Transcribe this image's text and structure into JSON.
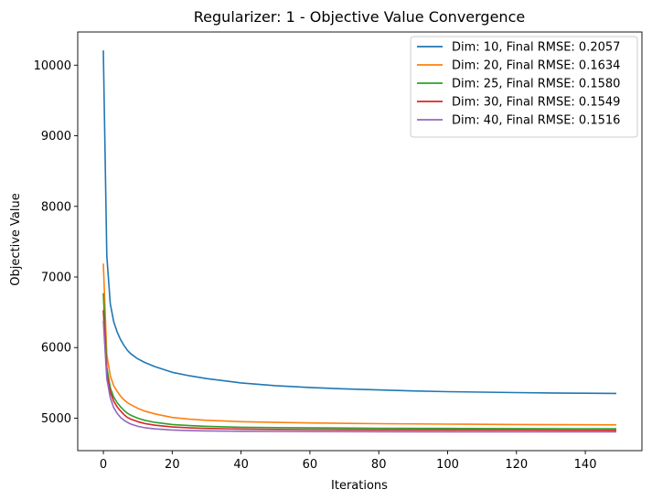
{
  "chart_data": {
    "type": "line",
    "title": "Regularizer: 1 - Objective Value Convergence",
    "xlabel": "Iterations",
    "ylabel": "Objective Value",
    "xlim": [
      -7.45,
      156.45
    ],
    "ylim": [
      4540,
      10470
    ],
    "xticks": [
      0,
      20,
      40,
      60,
      80,
      100,
      120,
      140
    ],
    "yticks": [
      5000,
      6000,
      7000,
      8000,
      9000,
      10000
    ],
    "grid": false,
    "legend_position": "upper right",
    "series": [
      {
        "name": "Dim: 10, Final RMSE: 0.2057",
        "color": "#1f77b4",
        "points": [
          [
            0,
            10210
          ],
          [
            1,
            7300
          ],
          [
            2,
            6620
          ],
          [
            3,
            6370
          ],
          [
            4,
            6220
          ],
          [
            5,
            6110
          ],
          [
            6,
            6030
          ],
          [
            7,
            5960
          ],
          [
            8,
            5910
          ],
          [
            10,
            5840
          ],
          [
            12,
            5790
          ],
          [
            15,
            5730
          ],
          [
            20,
            5650
          ],
          [
            25,
            5600
          ],
          [
            30,
            5560
          ],
          [
            40,
            5500
          ],
          [
            50,
            5460
          ],
          [
            60,
            5435
          ],
          [
            70,
            5415
          ],
          [
            80,
            5400
          ],
          [
            90,
            5385
          ],
          [
            100,
            5375
          ],
          [
            110,
            5368
          ],
          [
            120,
            5362
          ],
          [
            130,
            5357
          ],
          [
            140,
            5353
          ],
          [
            149,
            5350
          ]
        ]
      },
      {
        "name": "Dim: 20, Final RMSE: 0.1634",
        "color": "#ff7f0e",
        "points": [
          [
            0,
            7190
          ],
          [
            1,
            5900
          ],
          [
            2,
            5600
          ],
          [
            3,
            5460
          ],
          [
            4,
            5380
          ],
          [
            5,
            5310
          ],
          [
            6,
            5260
          ],
          [
            7,
            5220
          ],
          [
            8,
            5190
          ],
          [
            10,
            5140
          ],
          [
            12,
            5100
          ],
          [
            15,
            5060
          ],
          [
            20,
            5010
          ],
          [
            25,
            4985
          ],
          [
            30,
            4970
          ],
          [
            40,
            4950
          ],
          [
            50,
            4940
          ],
          [
            60,
            4932
          ],
          [
            80,
            4922
          ],
          [
            100,
            4915
          ],
          [
            120,
            4910
          ],
          [
            140,
            4906
          ],
          [
            149,
            4905
          ]
        ]
      },
      {
        "name": "Dim: 25, Final RMSE: 0.1580",
        "color": "#2ca02c",
        "points": [
          [
            0,
            6770
          ],
          [
            1,
            5720
          ],
          [
            2,
            5430
          ],
          [
            3,
            5300
          ],
          [
            4,
            5220
          ],
          [
            5,
            5160
          ],
          [
            6,
            5110
          ],
          [
            7,
            5070
          ],
          [
            8,
            5040
          ],
          [
            10,
            5000
          ],
          [
            12,
            4970
          ],
          [
            15,
            4940
          ],
          [
            20,
            4910
          ],
          [
            25,
            4895
          ],
          [
            30,
            4885
          ],
          [
            40,
            4872
          ],
          [
            50,
            4866
          ],
          [
            60,
            4862
          ],
          [
            80,
            4857
          ],
          [
            100,
            4854
          ],
          [
            120,
            4852
          ],
          [
            140,
            4851
          ],
          [
            149,
            4850
          ]
        ]
      },
      {
        "name": "Dim: 30, Final RMSE: 0.1549",
        "color": "#d62728",
        "points": [
          [
            0,
            6530
          ],
          [
            1,
            5630
          ],
          [
            2,
            5370
          ],
          [
            3,
            5240
          ],
          [
            4,
            5160
          ],
          [
            5,
            5100
          ],
          [
            6,
            5050
          ],
          [
            7,
            5010
          ],
          [
            8,
            4985
          ],
          [
            10,
            4950
          ],
          [
            12,
            4925
          ],
          [
            15,
            4900
          ],
          [
            20,
            4875
          ],
          [
            25,
            4862
          ],
          [
            30,
            4855
          ],
          [
            40,
            4846
          ],
          [
            50,
            4841
          ],
          [
            60,
            4838
          ],
          [
            80,
            4834
          ],
          [
            100,
            4832
          ],
          [
            120,
            4830
          ],
          [
            140,
            4829
          ],
          [
            149,
            4828
          ]
        ]
      },
      {
        "name": "Dim: 40, Final RMSE: 0.1516",
        "color": "#9467bd",
        "points": [
          [
            0,
            6380
          ],
          [
            1,
            5560
          ],
          [
            2,
            5290
          ],
          [
            3,
            5150
          ],
          [
            4,
            5070
          ],
          [
            5,
            5010
          ],
          [
            6,
            4970
          ],
          [
            7,
            4940
          ],
          [
            8,
            4915
          ],
          [
            10,
            4885
          ],
          [
            12,
            4865
          ],
          [
            15,
            4848
          ],
          [
            20,
            4832
          ],
          [
            25,
            4824
          ],
          [
            30,
            4820
          ],
          [
            40,
            4815
          ],
          [
            50,
            4812
          ],
          [
            60,
            4810
          ],
          [
            80,
            4808
          ],
          [
            100,
            4807
          ],
          [
            120,
            4806
          ],
          [
            140,
            4805
          ],
          [
            149,
            4805
          ]
        ]
      }
    ]
  }
}
